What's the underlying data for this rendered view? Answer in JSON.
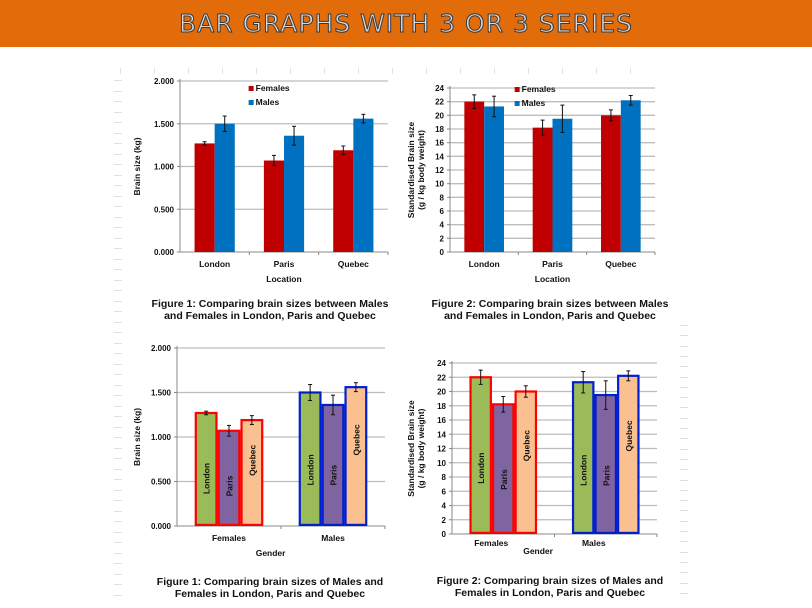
{
  "header": {
    "title": "BAR GRAPHS WITH 3 OR 3 SERIES"
  },
  "colors": {
    "header_bg": "#e36c0a",
    "females": "#c00000",
    "males": "#0070c0",
    "london": "#9bbb59",
    "paris": "#8064a2",
    "quebec": "#fac090",
    "female_outline": "#ff0000",
    "male_outline": "#0020d0"
  },
  "chart_data": [
    {
      "id": "fig1-location",
      "type": "bar",
      "title": "",
      "caption_line1": "Figure 1: Comparing brain sizes between Males",
      "caption_line2": "and Females in London, Paris and Quebec",
      "xlabel": "Location",
      "ylabel": "Brain  size (kg)",
      "ylim": [
        0,
        2
      ],
      "yticks": [
        "0.000",
        "0.500",
        "1.000",
        "1.500",
        "2.000"
      ],
      "ytick_values": [
        0,
        0.5,
        1,
        1.5,
        2
      ],
      "grid": true,
      "legend": "top-center",
      "categories": [
        "London",
        "Paris",
        "Quebec"
      ],
      "series": [
        {
          "name": "Females",
          "values": [
            1.27,
            1.07,
            1.19
          ],
          "errors": [
            0.02,
            0.06,
            0.05
          ]
        },
        {
          "name": "Males",
          "values": [
            1.5,
            1.36,
            1.56
          ],
          "errors": [
            0.09,
            0.11,
            0.05
          ]
        }
      ]
    },
    {
      "id": "fig2-location",
      "type": "bar",
      "title": "",
      "caption_line1": "Figure 2: Comparing brain sizes between Males",
      "caption_line2": "and Females in London, Paris and Quebec",
      "xlabel": "Location",
      "ylabel": "Standardised Brain  size",
      "ylabel2": "(g / kg body weight)",
      "ylim": [
        0,
        24
      ],
      "yticks": [
        "0",
        "2",
        "4",
        "6",
        "8",
        "10",
        "12",
        "14",
        "16",
        "18",
        "20",
        "22",
        "24"
      ],
      "ytick_values": [
        0,
        2,
        4,
        6,
        8,
        10,
        12,
        14,
        16,
        18,
        20,
        22,
        24
      ],
      "grid": true,
      "legend": "top-center",
      "categories": [
        "London",
        "Paris",
        "Quebec"
      ],
      "series": [
        {
          "name": "Females",
          "values": [
            22.0,
            18.2,
            20.0
          ],
          "errors": [
            1.0,
            1.1,
            0.8
          ]
        },
        {
          "name": "Males",
          "values": [
            21.3,
            19.5,
            22.2
          ],
          "errors": [
            1.5,
            2.0,
            0.7
          ]
        }
      ]
    },
    {
      "id": "fig1-gender",
      "type": "bar",
      "title": "",
      "caption_line1": "Figure 1: Comparing brain sizes of Males and",
      "caption_line2": "Females in London, Paris and Quebec",
      "xlabel": "Gender",
      "ylabel": "Brain  size (kg)",
      "ylim": [
        0,
        2
      ],
      "yticks": [
        "0.000",
        "0.500",
        "1.000",
        "1.500",
        "2.000"
      ],
      "ytick_values": [
        0,
        0.5,
        1,
        1.5,
        2
      ],
      "grid": true,
      "legend": "none (in-bar labels)",
      "categories": [
        "Females",
        "Males"
      ],
      "series": [
        {
          "name": "London",
          "values": [
            1.27,
            1.5
          ],
          "errors": [
            0.02,
            0.09
          ]
        },
        {
          "name": "Paris",
          "values": [
            1.07,
            1.36
          ],
          "errors": [
            0.06,
            0.11
          ]
        },
        {
          "name": "Quebec",
          "values": [
            1.19,
            1.56
          ],
          "errors": [
            0.05,
            0.05
          ]
        }
      ]
    },
    {
      "id": "fig2-gender",
      "type": "bar",
      "title": "",
      "caption_line1": "Figure 2: Comparing brain sizes of Males and",
      "caption_line2": "Females in London, Paris and Quebec",
      "xlabel": "Gender",
      "ylabel": "Standardised Brain  size",
      "ylabel2": "(g / kg body weight)",
      "ylim": [
        0,
        24
      ],
      "yticks": [
        "0",
        "2",
        "4",
        "6",
        "8",
        "10",
        "12",
        "14",
        "16",
        "18",
        "20",
        "22",
        "24"
      ],
      "ytick_values": [
        0,
        2,
        4,
        6,
        8,
        10,
        12,
        14,
        16,
        18,
        20,
        22,
        24
      ],
      "grid": true,
      "legend": "none (in-bar labels)",
      "categories": [
        "Females",
        "Males"
      ],
      "series": [
        {
          "name": "London",
          "values": [
            22.0,
            21.3
          ],
          "errors": [
            1.0,
            1.5
          ]
        },
        {
          "name": "Paris",
          "values": [
            18.2,
            19.5
          ],
          "errors": [
            1.1,
            2.0
          ]
        },
        {
          "name": "Quebec",
          "values": [
            20.0,
            22.2
          ],
          "errors": [
            0.8,
            0.7
          ]
        }
      ]
    }
  ]
}
